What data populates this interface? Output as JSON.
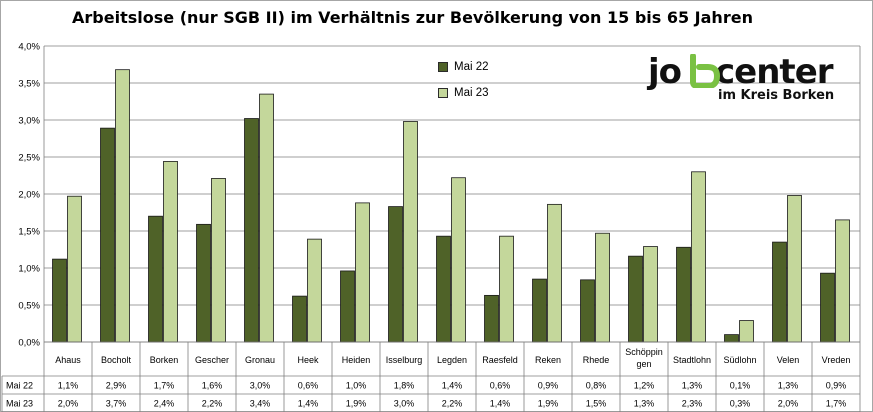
{
  "chart_data": {
    "type": "bar",
    "title": "Arbeitslose (nur SGB II) im Verhältnis zur Bevölkerung von 15 bis 65 Jahren",
    "categories": [
      "Ahaus",
      "Bocholt",
      "Borken",
      "Gescher",
      "Gronau",
      "Heek",
      "Heiden",
      "Isselburg",
      "Legden",
      "Raesfeld",
      "Reken",
      "Rhede",
      "Schöppingen",
      "Stadtlohn",
      "Südlohn",
      "Velen",
      "Vreden"
    ],
    "category_labels": [
      [
        "Ahaus"
      ],
      [
        "Bocholt"
      ],
      [
        "Borken"
      ],
      [
        "Gescher"
      ],
      [
        "Gronau"
      ],
      [
        "Heek"
      ],
      [
        "Heiden"
      ],
      [
        "Isselburg"
      ],
      [
        "Legden"
      ],
      [
        "Raesfeld"
      ],
      [
        "Reken"
      ],
      [
        "Rhede"
      ],
      [
        "Schöppin",
        "gen"
      ],
      [
        "Stadtlohn"
      ],
      [
        "Südlohn"
      ],
      [
        "Velen"
      ],
      [
        "Vreden"
      ]
    ],
    "series": [
      {
        "name": "Mai 22",
        "color": "#4f6228",
        "values": [
          1.12,
          2.89,
          1.7,
          1.59,
          3.02,
          0.62,
          0.96,
          1.83,
          1.43,
          0.63,
          0.85,
          0.84,
          1.16,
          1.28,
          0.1,
          1.35,
          0.93
        ],
        "table_labels": [
          "1,1%",
          "2,9%",
          "1,7%",
          "1,6%",
          "3,0%",
          "0,6%",
          "1,0%",
          "1,8%",
          "1,4%",
          "0,6%",
          "0,9%",
          "0,8%",
          "1,2%",
          "1,3%",
          "0,1%",
          "1,3%",
          "0,9%"
        ]
      },
      {
        "name": "Mai 23",
        "color": "#c4d79b",
        "values": [
          1.97,
          3.68,
          2.44,
          2.21,
          3.35,
          1.39,
          1.88,
          2.98,
          2.22,
          1.43,
          1.86,
          1.47,
          1.29,
          2.3,
          0.29,
          1.98,
          1.65
        ],
        "table_labels": [
          "2,0%",
          "3,7%",
          "2,4%",
          "2,2%",
          "3,4%",
          "1,4%",
          "1,9%",
          "3,0%",
          "2,2%",
          "1,4%",
          "1,9%",
          "1,5%",
          "1,3%",
          "2,3%",
          "0,3%",
          "2,0%",
          "1,7%"
        ]
      }
    ],
    "ylim": [
      0,
      4.0
    ],
    "yticks": [
      "0,0%",
      "0,5%",
      "1,0%",
      "1,5%",
      "2,0%",
      "2,5%",
      "3,0%",
      "3,5%",
      "4,0%"
    ],
    "grid": true,
    "legend_position": "top-center"
  },
  "logo": {
    "top_left": "jo",
    "top_right": "center",
    "bottom": "im Kreis Borken",
    "mark_color": "#7ac143"
  }
}
